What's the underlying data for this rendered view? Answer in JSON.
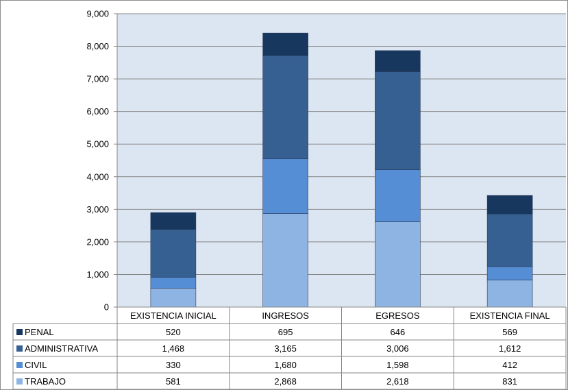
{
  "chart_data": {
    "type": "bar",
    "stacked": true,
    "categories": [
      "EXISTENCIA INICIAL",
      "INGRESOS",
      "EGRESOS",
      "EXISTENCIA FINAL"
    ],
    "series": [
      {
        "name": "TRABAJO",
        "values": [
          581,
          2868,
          2618,
          831
        ],
        "labels": [
          "581",
          "2,868",
          "2,618",
          "831"
        ],
        "color": "#8EB4E3"
      },
      {
        "name": "CIVIL",
        "values": [
          330,
          1680,
          1598,
          412
        ],
        "labels": [
          "330",
          "1,680",
          "1,598",
          "412"
        ],
        "color": "#558ED5"
      },
      {
        "name": "ADMINISTRATIVA",
        "values": [
          1468,
          3165,
          3006,
          1612
        ],
        "labels": [
          "1,468",
          "3,165",
          "3,006",
          "1,612"
        ],
        "color": "#376092"
      },
      {
        "name": "PENAL",
        "values": [
          520,
          695,
          646,
          569
        ],
        "labels": [
          "520",
          "695",
          "646",
          "569"
        ],
        "color": "#17375E"
      }
    ],
    "ylim": [
      0,
      9000
    ],
    "yticks": [
      0,
      1000,
      2000,
      3000,
      4000,
      5000,
      6000,
      7000,
      8000,
      9000
    ],
    "ytick_labels": [
      "0",
      "1,000",
      "2,000",
      "3,000",
      "4,000",
      "5,000",
      "6,000",
      "7,000",
      "8,000",
      "9,000"
    ],
    "grid": true,
    "plot_background": "#DCE6F2",
    "legend": "data-table",
    "title": "",
    "xlabel": "",
    "ylabel": ""
  }
}
